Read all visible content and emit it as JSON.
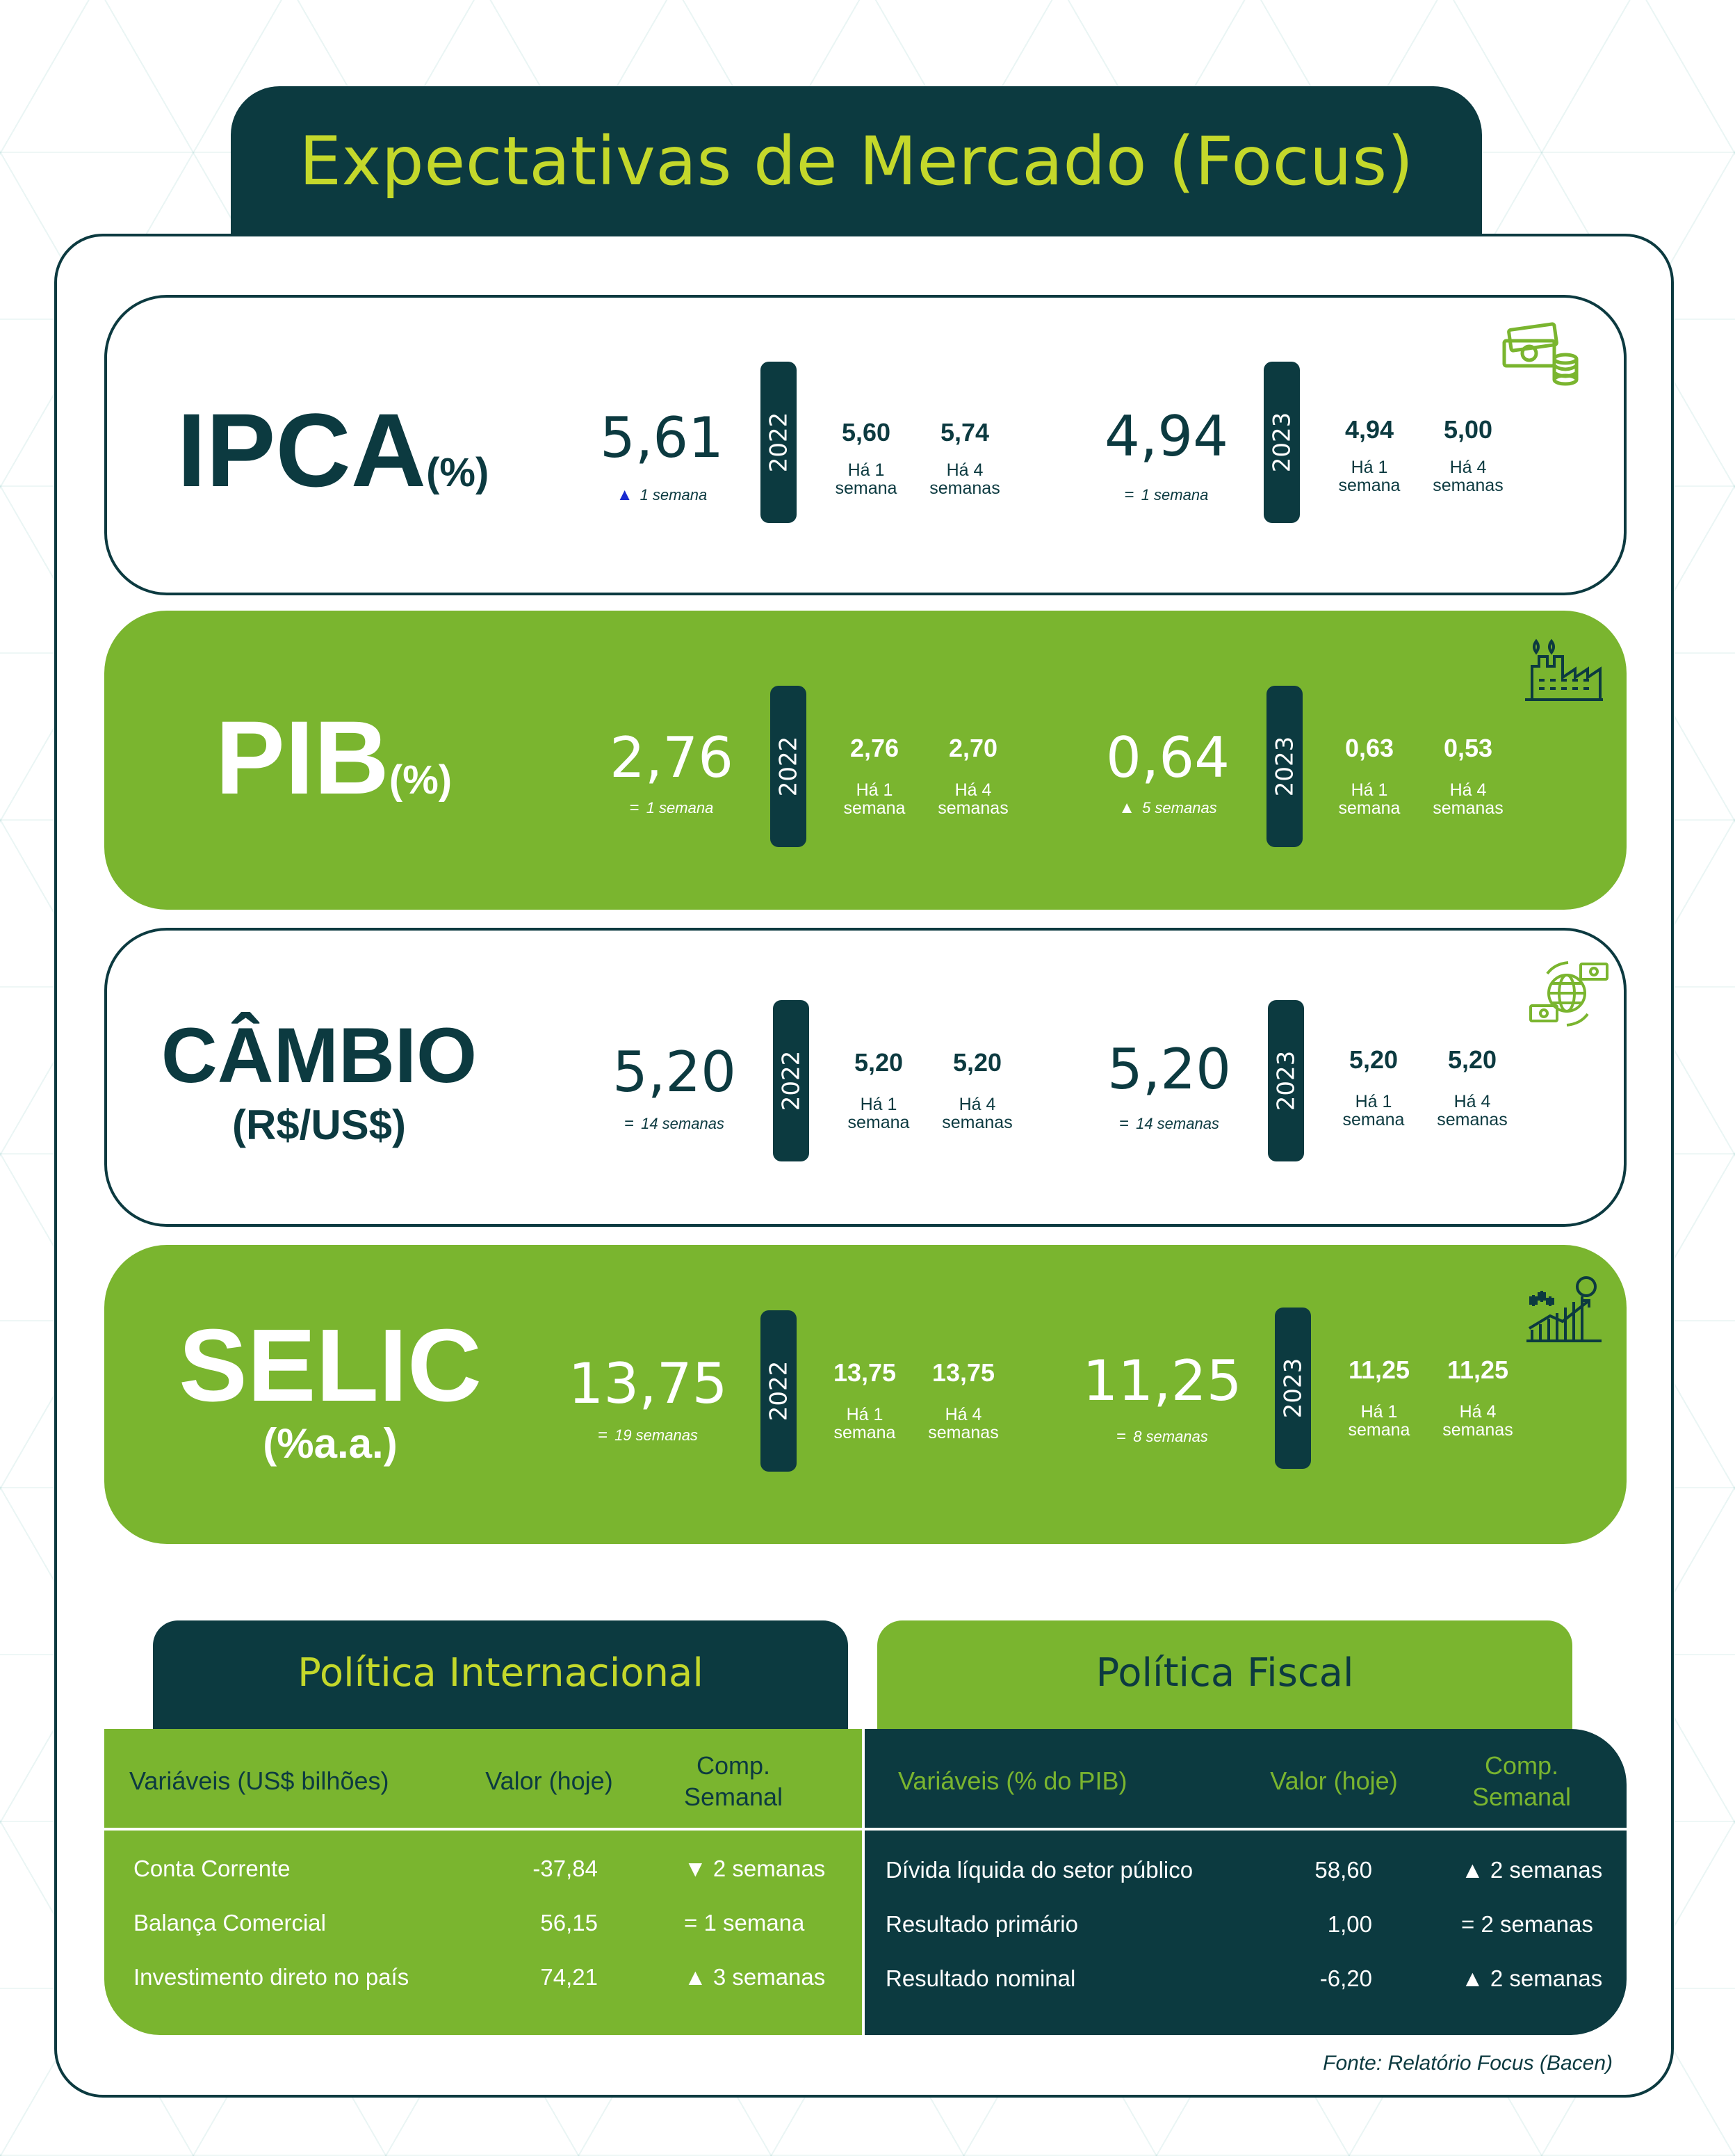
{
  "title": "Expectativas de Mercado (Focus)",
  "labels": {
    "week1": "Há 1\nsemana",
    "week4": "Há 4\nsemanas"
  },
  "cards": [
    {
      "name": "IPCA",
      "unit": "(%)",
      "y2022": {
        "year": "2022",
        "value": "5,61",
        "indicator": "up",
        "indicator_text": "1 semana",
        "ha1": "5,60",
        "ha4": "5,74"
      },
      "y2023": {
        "year": "2023",
        "value": "4,94",
        "indicator": "equal",
        "indicator_text": "1 semana",
        "ha1": "4,94",
        "ha4": "5,00"
      },
      "icon": "money-coins-icon"
    },
    {
      "name": "PIB",
      "unit": "(%)",
      "y2022": {
        "year": "2022",
        "value": "2,76",
        "indicator": "equal",
        "indicator_text": "1 semana",
        "ha1": "2,76",
        "ha4": "2,70"
      },
      "y2023": {
        "year": "2023",
        "value": "0,64",
        "indicator": "up",
        "indicator_text": "5 semanas",
        "ha1": "0,63",
        "ha4": "0,53"
      },
      "icon": "factory-icon"
    },
    {
      "name": "CÂMBIO",
      "unit": "(R$/US$)",
      "y2022": {
        "year": "2022",
        "value": "5,20",
        "indicator": "equal",
        "indicator_text": "14 semanas",
        "ha1": "5,20",
        "ha4": "5,20"
      },
      "y2023": {
        "year": "2023",
        "value": "5,20",
        "indicator": "equal",
        "indicator_text": "14 semanas",
        "ha1": "5,20",
        "ha4": "5,20"
      },
      "icon": "currency-exchange-globe-icon"
    },
    {
      "name": "SELIC",
      "unit": "(%a.a.)",
      "y2022": {
        "year": "2022",
        "value": "13,75",
        "indicator": "equal",
        "indicator_text": "19 semanas",
        "ha1": "13,75",
        "ha4": "13,75"
      },
      "y2023": {
        "year": "2023",
        "value": "11,25",
        "indicator": "equal",
        "indicator_text": "8 semanas",
        "ha1": "11,25",
        "ha4": "11,25"
      },
      "icon": "rising-chart-coin-icon"
    }
  ],
  "politica_internacional": {
    "title": "Política Internacional",
    "headers": [
      "Variáveis (US$ bilhões)",
      "Valor (hoje)",
      "Comp.\nSemanal"
    ],
    "rows": [
      {
        "var": "Conta Corrente",
        "valor": "-37,84",
        "comp_symbol": "▼",
        "comp_text": "2 semanas"
      },
      {
        "var": "Balança Comercial",
        "valor": "56,15",
        "comp_symbol": "=",
        "comp_text": "1 semana"
      },
      {
        "var": "Investimento direto no país",
        "valor": "74,21",
        "comp_symbol": "▲",
        "comp_text": "3 semanas"
      }
    ]
  },
  "politica_fiscal": {
    "title": "Política Fiscal",
    "headers": [
      "Variáveis (% do PIB)",
      "Valor (hoje)",
      "Comp.\nSemanal"
    ],
    "rows": [
      {
        "var": "Dívida líquida do setor público",
        "valor": "58,60",
        "comp_symbol": "▲",
        "comp_text": "2 semanas"
      },
      {
        "var": "Resultado primário",
        "valor": "1,00",
        "comp_symbol": "=",
        "comp_text": "2 semanas"
      },
      {
        "var": "Resultado nominal",
        "valor": "-6,20",
        "comp_symbol": "▲",
        "comp_text": "2 semanas"
      }
    ]
  },
  "source": "Fonte: Relatório Focus (Bacen)",
  "colors": {
    "dark": "#0c3a40",
    "green": "#7ab52f",
    "lime": "#c4d82b",
    "indicator_up": "#1a2bd0"
  }
}
